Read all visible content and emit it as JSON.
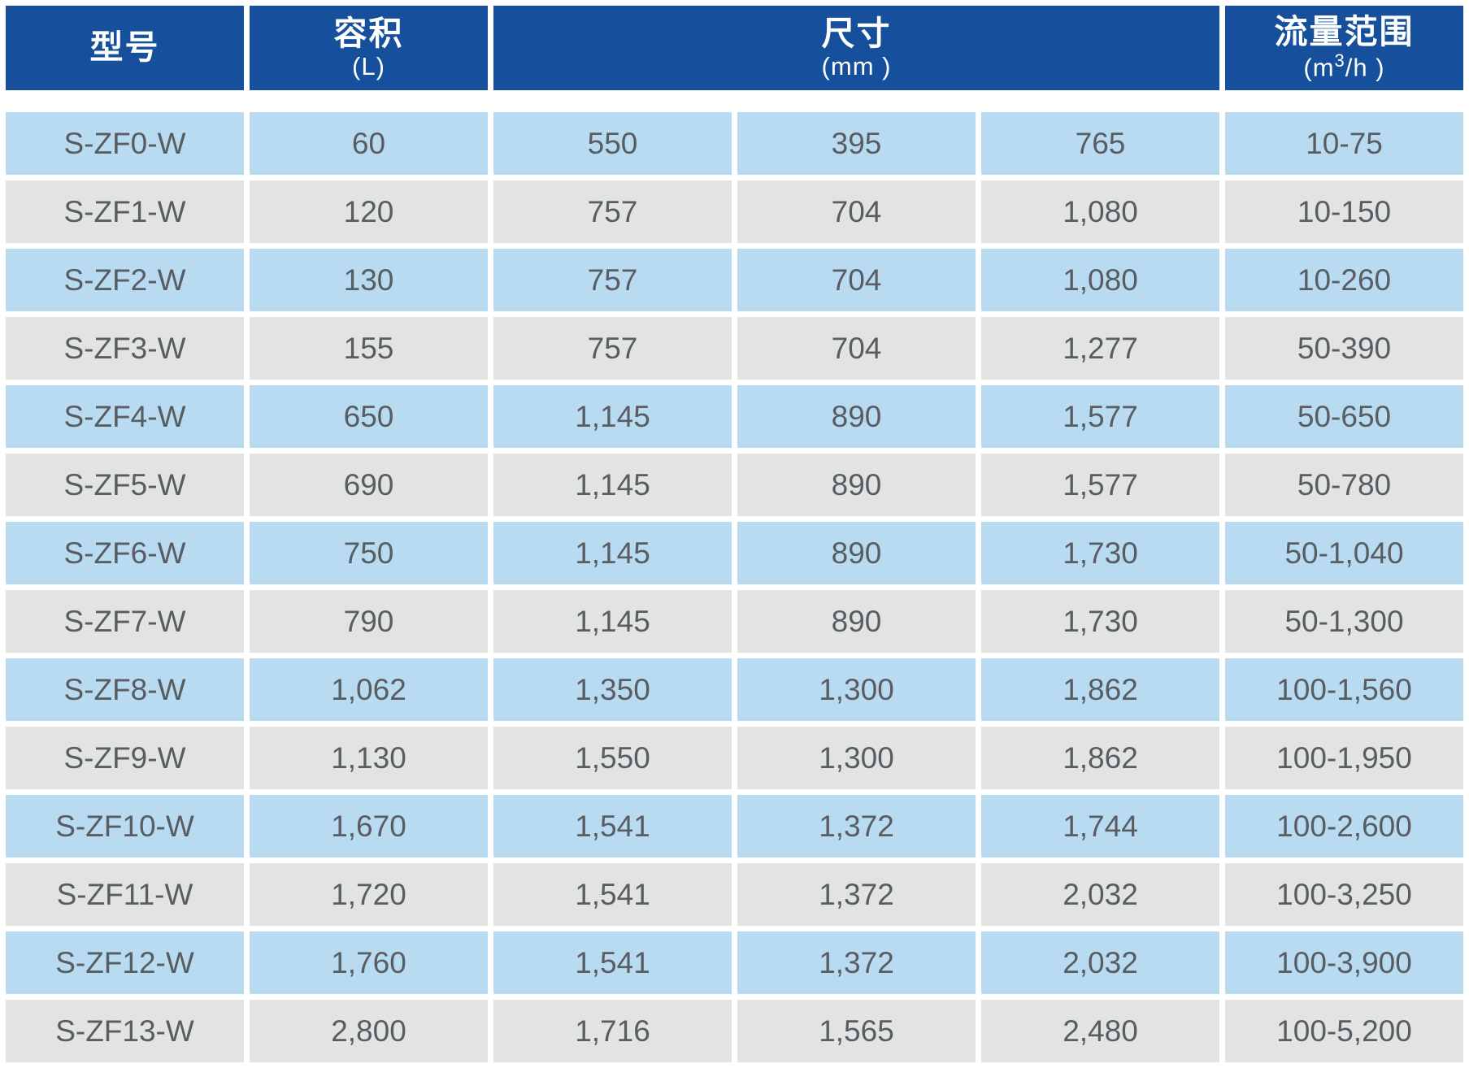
{
  "colors": {
    "header_bg": "#164f9c",
    "header_text": "#ffffff",
    "row_blue": "#b8dbf2",
    "row_gray": "#e2e3e3",
    "text": "#595d61",
    "gap": "#ffffff"
  },
  "header": {
    "col_model": {
      "title": "型号"
    },
    "col_volume": {
      "title": "容积",
      "unit": "(L)"
    },
    "col_dimensions": {
      "title": "尺寸",
      "unit": "(mm )",
      "span": 3
    },
    "col_flow": {
      "title": "流量范围",
      "unit_pre": "(m",
      "unit_sup": "3",
      "unit_post": "/h )"
    }
  },
  "chart_data": {
    "type": "table",
    "columns": [
      "型号",
      "容积 (L)",
      "尺寸 (mm)",
      "尺寸 (mm)",
      "尺寸 (mm)",
      "流量范围 (m³/h)"
    ],
    "column_notes": "尺寸(mm) header spans the three middle dimension columns",
    "rows": [
      [
        "S-ZF0-W",
        "60",
        "550",
        "395",
        "765",
        "10-75"
      ],
      [
        "S-ZF1-W",
        "120",
        "757",
        "704",
        "1,080",
        "10-150"
      ],
      [
        "S-ZF2-W",
        "130",
        "757",
        "704",
        "1,080",
        "10-260"
      ],
      [
        "S-ZF3-W",
        "155",
        "757",
        "704",
        "1,277",
        "50-390"
      ],
      [
        "S-ZF4-W",
        "650",
        "1,145",
        "890",
        "1,577",
        "50-650"
      ],
      [
        "S-ZF5-W",
        "690",
        "1,145",
        "890",
        "1,577",
        "50-780"
      ],
      [
        "S-ZF6-W",
        "750",
        "1,145",
        "890",
        "1,730",
        "50-1,040"
      ],
      [
        "S-ZF7-W",
        "790",
        "1,145",
        "890",
        "1,730",
        "50-1,300"
      ],
      [
        "S-ZF8-W",
        "1,062",
        "1,350",
        "1,300",
        "1,862",
        "100-1,560"
      ],
      [
        "S-ZF9-W",
        "1,130",
        "1,550",
        "1,300",
        "1,862",
        "100-1,950"
      ],
      [
        "S-ZF10-W",
        "1,670",
        "1,541",
        "1,372",
        "1,744",
        "100-2,600"
      ],
      [
        "S-ZF11-W",
        "1,720",
        "1,541",
        "1,372",
        "2,032",
        "100-3,250"
      ],
      [
        "S-ZF12-W",
        "1,760",
        "1,541",
        "1,372",
        "2,032",
        "100-3,900"
      ],
      [
        "S-ZF13-W",
        "2,800",
        "1,716",
        "1,565",
        "2,480",
        "100-5,200"
      ]
    ]
  }
}
